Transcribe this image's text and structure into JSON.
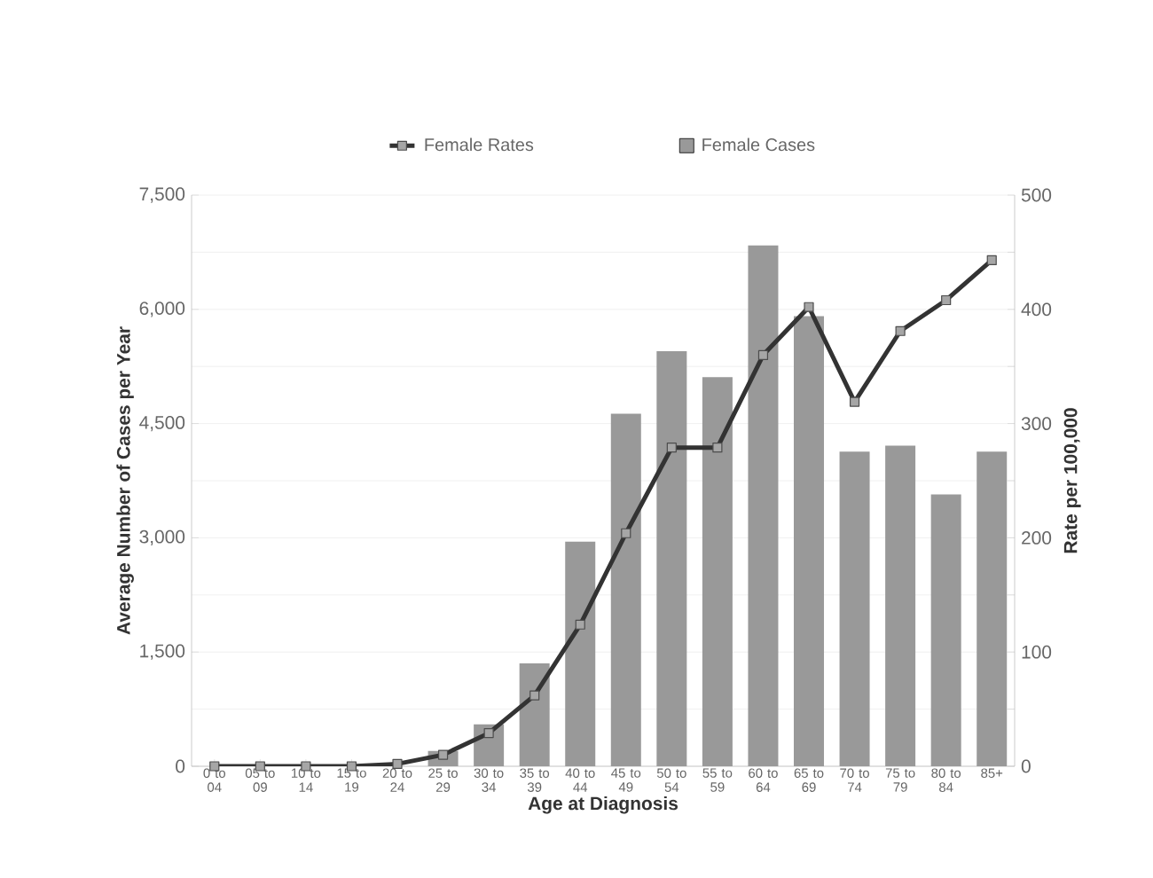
{
  "chart_data": {
    "type": "bar",
    "xlabel": "Age at Diagnosis",
    "ylabel": "Average Number of Cases per Year",
    "y2label": "Rate per 100,000",
    "categories": [
      "0 to 04",
      "05 to 09",
      "10 to 14",
      "15 to 19",
      "20 to 24",
      "25 to 29",
      "30 to 34",
      "35 to 39",
      "40 to 44",
      "45 to 49",
      "50 to 54",
      "55 to 59",
      "60 to 64",
      "65 to 69",
      "70 to 74",
      "75 to 79",
      "80 to 84",
      "85+"
    ],
    "series": [
      {
        "name": "Female Rates",
        "type": "line",
        "axis": "y2",
        "color": "#333333",
        "values": [
          0,
          0,
          0,
          0,
          2,
          10,
          29,
          62,
          124,
          204,
          279,
          279,
          360,
          402,
          319,
          381,
          408,
          443
        ]
      },
      {
        "name": "Female Cases",
        "color": "#999999",
        "values": [
          0,
          0,
          0,
          0,
          0,
          200,
          550,
          1350,
          2950,
          4630,
          5450,
          5110,
          6840,
          5910,
          4130,
          4210,
          3570,
          4130
        ]
      }
    ],
    "ylim": [
      0,
      7500
    ],
    "yticks": [
      0,
      {
        "value": 1500,
        "label": "1,500"
      },
      {
        "value": 3000,
        "label": "3,000"
      },
      {
        "value": 4500,
        "label": "4,500"
      },
      {
        "value": 6000,
        "label": "6,000"
      },
      {
        "value": 7500,
        "label": "7,500"
      }
    ],
    "y2lim": [
      0,
      500
    ],
    "y2ticks": [
      0,
      100,
      200,
      300,
      400,
      500
    ],
    "grid": "y",
    "legend": "top",
    "marker": "square"
  }
}
